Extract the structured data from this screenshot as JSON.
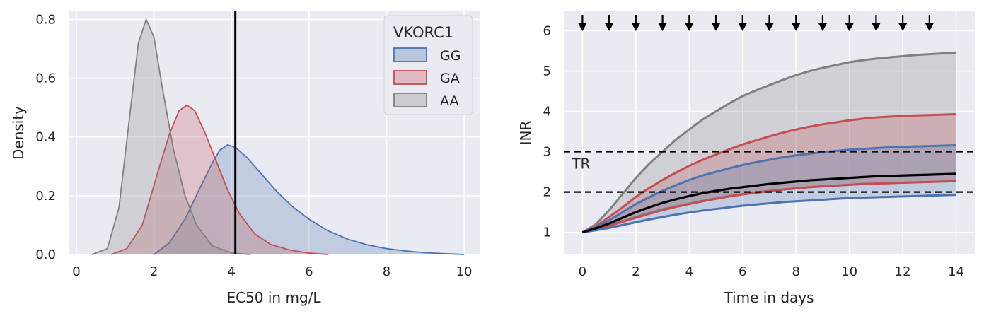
{
  "chart_data": [
    {
      "type": "area",
      "title": "",
      "xlabel": "EC50 in mg/L",
      "ylabel": "Density",
      "xlim": [
        -0.2,
        10.4
      ],
      "ylim": [
        0,
        0.83
      ],
      "xticks": [
        0,
        2,
        4,
        6,
        8,
        10
      ],
      "yticks": [
        0.0,
        0.2,
        0.4,
        0.6,
        0.8
      ],
      "grid": true,
      "legend": {
        "title": "VKORC1",
        "placement": "top-right"
      },
      "vertical_line": {
        "x": 4.1,
        "color": "#000000"
      },
      "series": [
        {
          "name": "GG",
          "color": "#4c72b0",
          "points": [
            [
              2.0,
              0.0
            ],
            [
              2.4,
              0.04
            ],
            [
              2.8,
              0.12
            ],
            [
              3.2,
              0.23
            ],
            [
              3.5,
              0.31
            ],
            [
              3.7,
              0.355
            ],
            [
              3.9,
              0.373
            ],
            [
              4.1,
              0.365
            ],
            [
              4.4,
              0.33
            ],
            [
              4.8,
              0.27
            ],
            [
              5.2,
              0.21
            ],
            [
              5.6,
              0.16
            ],
            [
              6.0,
              0.12
            ],
            [
              6.5,
              0.08
            ],
            [
              7.0,
              0.052
            ],
            [
              7.5,
              0.033
            ],
            [
              8.0,
              0.02
            ],
            [
              8.5,
              0.012
            ],
            [
              9.0,
              0.006
            ],
            [
              9.5,
              0.003
            ],
            [
              10.0,
              0.0
            ]
          ]
        },
        {
          "name": "GA",
          "color": "#c44e52",
          "points": [
            [
              0.9,
              0.0
            ],
            [
              1.3,
              0.02
            ],
            [
              1.7,
              0.1
            ],
            [
              2.1,
              0.28
            ],
            [
              2.4,
              0.41
            ],
            [
              2.65,
              0.49
            ],
            [
              2.85,
              0.508
            ],
            [
              3.05,
              0.49
            ],
            [
              3.3,
              0.42
            ],
            [
              3.6,
              0.32
            ],
            [
              3.9,
              0.22
            ],
            [
              4.2,
              0.14
            ],
            [
              4.6,
              0.07
            ],
            [
              5.0,
              0.035
            ],
            [
              5.5,
              0.015
            ],
            [
              6.0,
              0.005
            ],
            [
              6.5,
              0.0
            ]
          ]
        },
        {
          "name": "AA",
          "color": "#808080",
          "points": [
            [
              0.4,
              0.0
            ],
            [
              0.8,
              0.02
            ],
            [
              1.1,
              0.16
            ],
            [
              1.4,
              0.5
            ],
            [
              1.6,
              0.72
            ],
            [
              1.8,
              0.8
            ],
            [
              2.0,
              0.74
            ],
            [
              2.2,
              0.58
            ],
            [
              2.5,
              0.36
            ],
            [
              2.8,
              0.2
            ],
            [
              3.1,
              0.1
            ],
            [
              3.5,
              0.03
            ],
            [
              4.0,
              0.005
            ],
            [
              4.5,
              0.0
            ]
          ]
        }
      ]
    },
    {
      "type": "line",
      "title": "",
      "xlabel": "Time in days",
      "ylabel": "INR",
      "xlim": [
        -0.7,
        14.7
      ],
      "ylim": [
        0.45,
        6.5
      ],
      "xticks": [
        0,
        2,
        4,
        6,
        8,
        10,
        12,
        14
      ],
      "yticks": [
        1,
        2,
        3,
        4,
        5,
        6
      ],
      "grid": true,
      "dose_days": [
        0,
        1,
        2,
        3,
        4,
        5,
        6,
        7,
        8,
        9,
        10,
        11,
        12,
        13
      ],
      "therapeutic_range": {
        "label": "TR",
        "lower": 2,
        "upper": 3
      },
      "x": [
        0,
        0.5,
        1,
        1.5,
        2,
        2.5,
        3,
        3.5,
        4,
        4.5,
        5,
        5.5,
        6,
        6.5,
        7,
        7.5,
        8,
        8.5,
        9,
        9.5,
        10,
        10.5,
        11,
        11.5,
        12,
        12.5,
        13,
        13.5,
        14
      ],
      "series": [
        {
          "name": "AA",
          "color": "#808080",
          "upper": [
            1.0,
            1.2,
            1.55,
            1.95,
            2.35,
            2.7,
            3.0,
            3.3,
            3.55,
            3.8,
            4.0,
            4.2,
            4.38,
            4.52,
            4.65,
            4.78,
            4.9,
            5.0,
            5.08,
            5.15,
            5.22,
            5.27,
            5.31,
            5.34,
            5.37,
            5.4,
            5.42,
            5.44,
            5.46
          ],
          "lower": [
            1.0,
            1.08,
            1.18,
            1.28,
            1.38,
            1.48,
            1.57,
            1.64,
            1.71,
            1.78,
            1.84,
            1.9,
            1.95,
            1.99,
            2.03,
            2.06,
            2.09,
            2.12,
            2.14,
            2.16,
            2.18,
            2.2,
            2.21,
            2.22,
            2.23,
            2.24,
            2.25,
            2.26,
            2.27
          ]
        },
        {
          "name": "GA",
          "color": "#c44e52",
          "upper": [
            1.0,
            1.15,
            1.38,
            1.62,
            1.88,
            2.1,
            2.3,
            2.48,
            2.65,
            2.8,
            2.93,
            3.06,
            3.18,
            3.28,
            3.38,
            3.47,
            3.55,
            3.62,
            3.68,
            3.73,
            3.78,
            3.82,
            3.85,
            3.87,
            3.89,
            3.9,
            3.91,
            3.92,
            3.93
          ],
          "lower": [
            1.0,
            1.07,
            1.16,
            1.26,
            1.36,
            1.46,
            1.55,
            1.63,
            1.7,
            1.77,
            1.83,
            1.89,
            1.94,
            1.98,
            2.02,
            2.06,
            2.09,
            2.12,
            2.14,
            2.16,
            2.18,
            2.2,
            2.21,
            2.22,
            2.23,
            2.24,
            2.25,
            2.26,
            2.27
          ]
        },
        {
          "name": "GG",
          "color": "#4c72b0",
          "upper": [
            1.0,
            1.12,
            1.3,
            1.5,
            1.7,
            1.87,
            2.03,
            2.17,
            2.3,
            2.41,
            2.5,
            2.59,
            2.67,
            2.74,
            2.8,
            2.86,
            2.91,
            2.95,
            2.99,
            3.02,
            3.05,
            3.07,
            3.09,
            3.11,
            3.12,
            3.13,
            3.14,
            3.15,
            3.16
          ],
          "lower": [
            1.0,
            1.05,
            1.11,
            1.18,
            1.25,
            1.32,
            1.38,
            1.44,
            1.49,
            1.54,
            1.58,
            1.62,
            1.66,
            1.69,
            1.72,
            1.75,
            1.77,
            1.79,
            1.81,
            1.83,
            1.85,
            1.86,
            1.87,
            1.88,
            1.89,
            1.9,
            1.91,
            1.92,
            1.93
          ]
        }
      ],
      "median": {
        "color": "#000000",
        "values": [
          1.0,
          1.1,
          1.22,
          1.36,
          1.5,
          1.62,
          1.73,
          1.82,
          1.9,
          1.97,
          2.03,
          2.08,
          2.12,
          2.16,
          2.2,
          2.23,
          2.26,
          2.29,
          2.31,
          2.33,
          2.35,
          2.37,
          2.39,
          2.4,
          2.41,
          2.42,
          2.43,
          2.44,
          2.45
        ]
      }
    }
  ]
}
